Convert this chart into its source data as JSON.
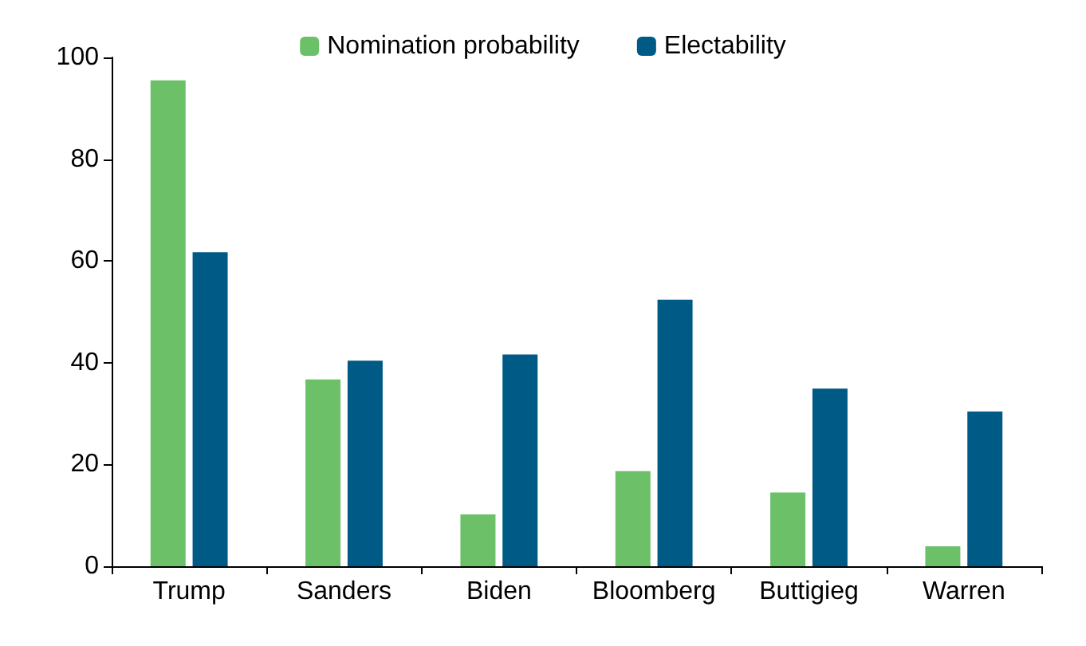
{
  "chart_data": {
    "type": "bar",
    "categories": [
      "Trump",
      "Sanders",
      "Biden",
      "Bloomberg",
      "Buttigieg",
      "Warren"
    ],
    "series": [
      {
        "name": "Nomination probability",
        "color": "#6cc068",
        "values": [
          95.5,
          36.7,
          10.2,
          18.7,
          14.5,
          3.9
        ]
      },
      {
        "name": "Electability",
        "color": "#005a86",
        "values": [
          61.7,
          40.4,
          41.6,
          52.4,
          34.9,
          30.4
        ]
      }
    ],
    "ylim": [
      0,
      100
    ],
    "yticks": [
      0,
      20,
      40,
      60,
      80,
      100
    ],
    "grid": false,
    "legend": "top"
  }
}
